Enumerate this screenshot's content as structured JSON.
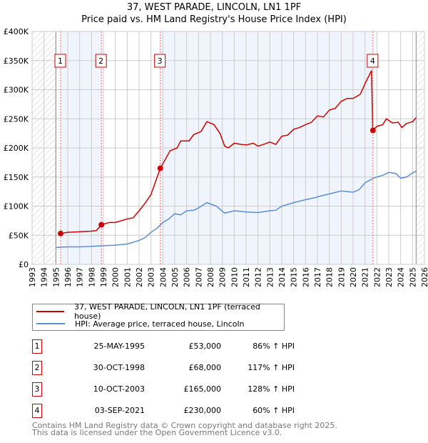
{
  "chart_data": {
    "type": "line",
    "title": "37, WEST PARADE, LINCOLN, LN1 1PF",
    "subtitle": "Price paid vs. HM Land Registry's House Price Index (HPI)",
    "xlim": [
      1993,
      2026
    ],
    "ylim": [
      0,
      400000
    ],
    "yticks": [
      "£0",
      "£50K",
      "£100K",
      "£150K",
      "£200K",
      "£250K",
      "£300K",
      "£350K",
      "£400K"
    ],
    "xticks": [
      "1993",
      "1994",
      "1995",
      "1996",
      "1997",
      "1998",
      "1999",
      "2000",
      "2001",
      "2002",
      "2003",
      "2004",
      "2005",
      "2006",
      "2007",
      "2008",
      "2009",
      "2010",
      "2011",
      "2012",
      "2013",
      "2014",
      "2015",
      "2016",
      "2017",
      "2018",
      "2019",
      "2020",
      "2021",
      "2022",
      "2023",
      "2024",
      "2025",
      "2026"
    ],
    "series": [
      {
        "name": "37, WEST PARADE, LINCOLN, LN1 1PF (terraced house)",
        "color": "#cc0000",
        "points": [
          [
            1995.4,
            53000
          ],
          [
            1996,
            55000
          ],
          [
            1997,
            56000
          ],
          [
            1998,
            57000
          ],
          [
            1998.4,
            58000
          ],
          [
            1998.83,
            68000
          ],
          [
            1999.5,
            72000
          ],
          [
            2000,
            72000
          ],
          [
            2001,
            78000
          ],
          [
            2001.5,
            80000
          ],
          [
            2002,
            92000
          ],
          [
            2002.5,
            105000
          ],
          [
            2003,
            120000
          ],
          [
            2003.78,
            165000
          ],
          [
            2004.2,
            180000
          ],
          [
            2004.6,
            195000
          ],
          [
            2005.2,
            200000
          ],
          [
            2005.5,
            212000
          ],
          [
            2006.2,
            212000
          ],
          [
            2006.6,
            223000
          ],
          [
            2007.2,
            228000
          ],
          [
            2007.7,
            245000
          ],
          [
            2008.3,
            240000
          ],
          [
            2008.8,
            225000
          ],
          [
            2009.2,
            203000
          ],
          [
            2009.5,
            200000
          ],
          [
            2010,
            208000
          ],
          [
            2010.6,
            206000
          ],
          [
            2011,
            205000
          ],
          [
            2011.6,
            208000
          ],
          [
            2012,
            203000
          ],
          [
            2012.6,
            207000
          ],
          [
            2013,
            210000
          ],
          [
            2013.5,
            206000
          ],
          [
            2014,
            220000
          ],
          [
            2014.5,
            222000
          ],
          [
            2015,
            232000
          ],
          [
            2015.5,
            235000
          ],
          [
            2016,
            240000
          ],
          [
            2016.5,
            244000
          ],
          [
            2017,
            255000
          ],
          [
            2017.5,
            253000
          ],
          [
            2018,
            265000
          ],
          [
            2018.5,
            268000
          ],
          [
            2019,
            280000
          ],
          [
            2019.5,
            285000
          ],
          [
            2020,
            285000
          ],
          [
            2020.6,
            292000
          ],
          [
            2021,
            310000
          ],
          [
            2021.55,
            333000
          ],
          [
            2021.65,
            230000
          ],
          [
            2022,
            237000
          ],
          [
            2022.5,
            240000
          ],
          [
            2022.8,
            250000
          ],
          [
            2023.3,
            243000
          ],
          [
            2023.8,
            244000
          ],
          [
            2024.1,
            235000
          ],
          [
            2024.5,
            242000
          ],
          [
            2025,
            245000
          ],
          [
            2025.3,
            252000
          ]
        ]
      },
      {
        "name": "HPI: Average price, terraced house, Lincoln",
        "color": "#5b8fd0",
        "points": [
          [
            1995,
            29000
          ],
          [
            1996,
            30000
          ],
          [
            1997,
            30000
          ],
          [
            1998,
            31000
          ],
          [
            1999,
            32000
          ],
          [
            2000,
            33000
          ],
          [
            2001,
            35000
          ],
          [
            2002,
            41000
          ],
          [
            2002.5,
            46000
          ],
          [
            2003,
            55000
          ],
          [
            2003.5,
            62000
          ],
          [
            2004,
            72000
          ],
          [
            2004.5,
            78000
          ],
          [
            2005,
            87000
          ],
          [
            2005.5,
            85000
          ],
          [
            2006,
            92000
          ],
          [
            2006.6,
            93000
          ],
          [
            2007,
            97000
          ],
          [
            2007.7,
            106000
          ],
          [
            2008.5,
            100000
          ],
          [
            2009.2,
            88000
          ],
          [
            2010,
            92000
          ],
          [
            2011,
            90000
          ],
          [
            2012,
            89000
          ],
          [
            2013,
            92000
          ],
          [
            2013.5,
            93000
          ],
          [
            2014,
            100000
          ],
          [
            2015,
            106000
          ],
          [
            2016,
            111000
          ],
          [
            2016.9,
            115000
          ],
          [
            2017,
            116000
          ],
          [
            2018,
            121000
          ],
          [
            2019,
            126000
          ],
          [
            2020,
            124000
          ],
          [
            2020.5,
            128000
          ],
          [
            2021,
            140000
          ],
          [
            2021.7,
            148000
          ],
          [
            2022,
            150000
          ],
          [
            2022.5,
            153000
          ],
          [
            2023,
            158000
          ],
          [
            2023.6,
            156000
          ],
          [
            2024,
            148000
          ],
          [
            2024.5,
            150000
          ],
          [
            2025,
            157000
          ],
          [
            2025.3,
            160000
          ]
        ]
      }
    ],
    "sales": [
      {
        "n": "1",
        "x": 1995.4,
        "y": 53000
      },
      {
        "n": "2",
        "x": 1998.83,
        "y": 68000
      },
      {
        "n": "3",
        "x": 2003.78,
        "y": 165000
      },
      {
        "n": "4",
        "x": 2021.67,
        "y": 230000
      }
    ],
    "shaded": [
      [
        1995.4,
        1998.83
      ],
      [
        2003.78,
        2021.67
      ]
    ],
    "hatched": [
      [
        1993,
        1995
      ],
      [
        2025.3,
        2026
      ]
    ]
  },
  "legend": [
    {
      "label": "37, WEST PARADE, LINCOLN, LN1 1PF (terraced house)",
      "color": "#cc0000"
    },
    {
      "label": "HPI: Average price, terraced house, Lincoln",
      "color": "#5b8fd0"
    }
  ],
  "table": [
    {
      "n": "1",
      "date": "25-MAY-1995",
      "price": "£53,000",
      "hpi": "86% ↑ HPI"
    },
    {
      "n": "2",
      "date": "30-OCT-1998",
      "price": "£68,000",
      "hpi": "117% ↑ HPI"
    },
    {
      "n": "3",
      "date": "10-OCT-2003",
      "price": "£165,000",
      "hpi": "128% ↑ HPI"
    },
    {
      "n": "4",
      "date": "03-SEP-2021",
      "price": "£230,000",
      "hpi": "60% ↑ HPI"
    }
  ],
  "footer": [
    "Contains HM Land Registry data © Crown copyright and database right 2025.",
    "This data is licensed under the Open Government Licence v3.0."
  ]
}
